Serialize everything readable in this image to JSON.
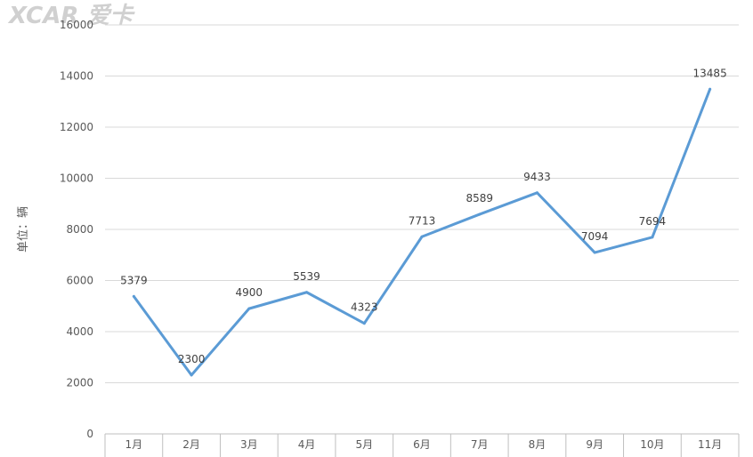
{
  "watermark": "XCAR 爱卡",
  "chart_data": {
    "type": "line",
    "title": "",
    "xlabel": "",
    "ylabel": "单位：辆",
    "categories": [
      "1月",
      "2月",
      "3月",
      "4月",
      "5月",
      "6月",
      "7月",
      "8月",
      "9月",
      "10月",
      "11月"
    ],
    "series": [
      {
        "values": [
          5379,
          2300,
          4900,
          5539,
          4323,
          7713,
          8589,
          9433,
          7094,
          7694,
          13485
        ],
        "color": "#5B9BD5"
      }
    ],
    "ylim": [
      0,
      16000
    ],
    "yticks": [
      0,
      2000,
      4000,
      6000,
      8000,
      10000,
      12000,
      14000,
      16000
    ],
    "grid": true,
    "legend": "none"
  }
}
